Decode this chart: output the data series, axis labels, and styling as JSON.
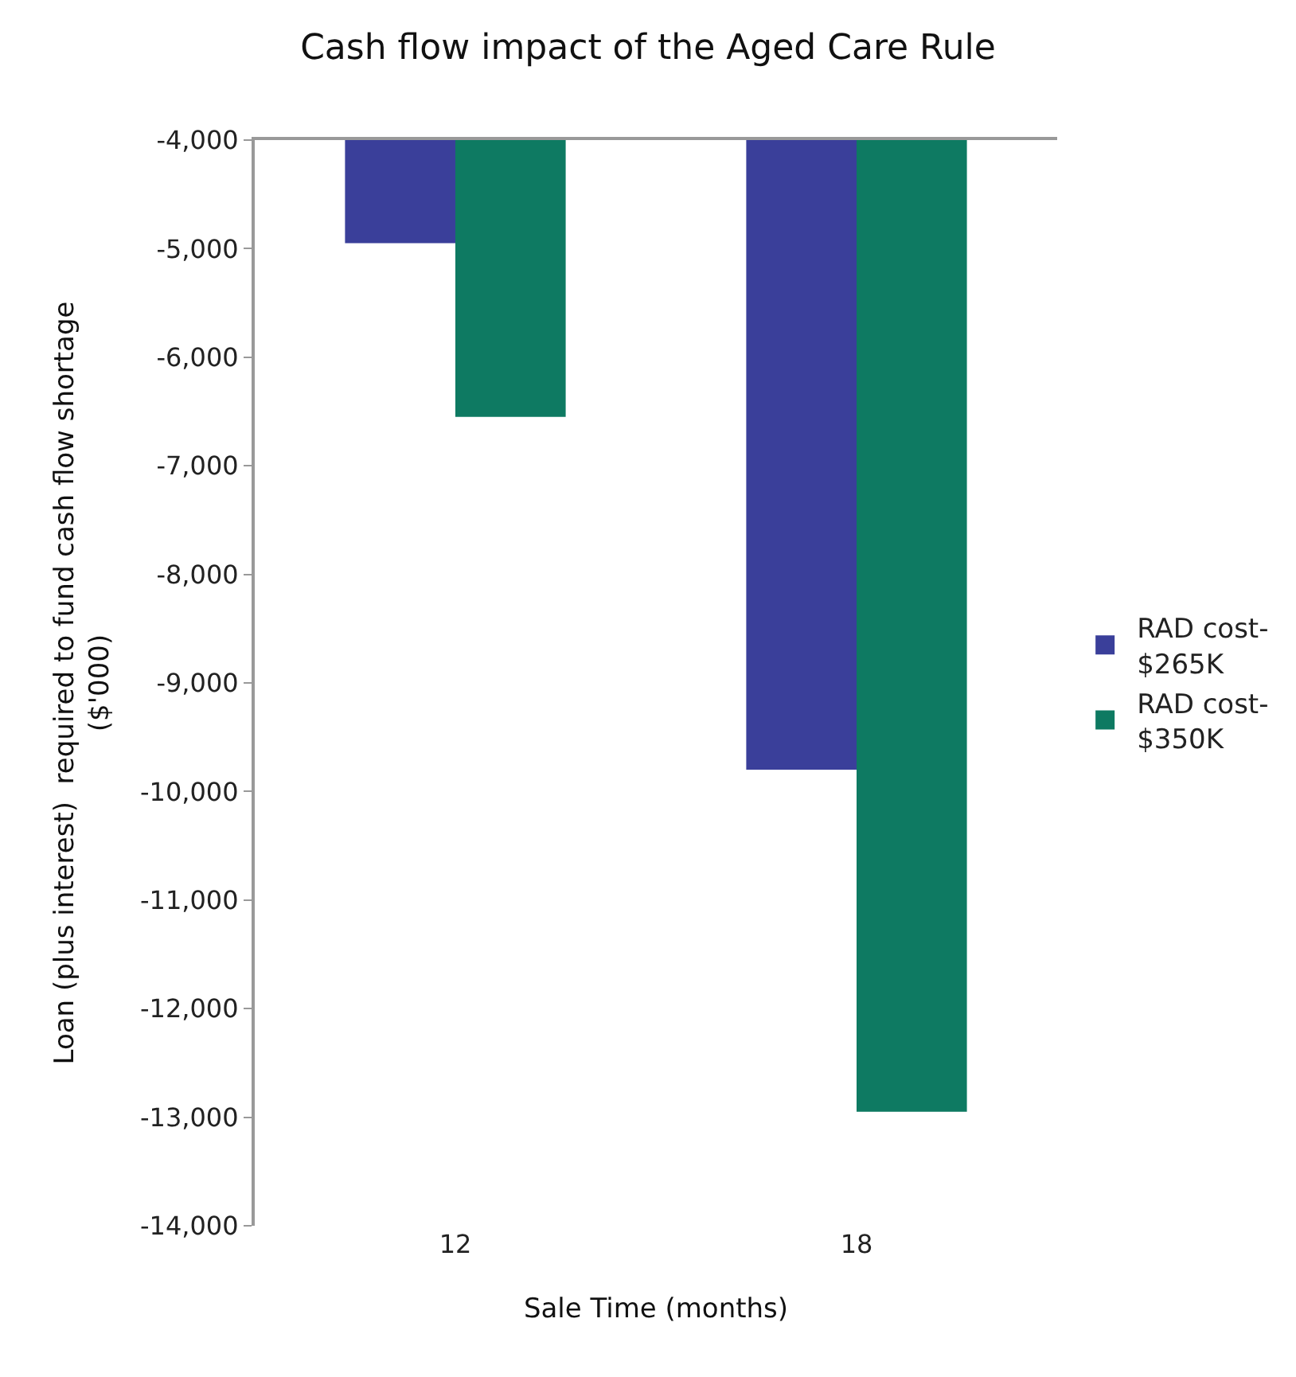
{
  "chart_data": {
    "type": "bar",
    "title": "Cash flow impact of the Aged Care Rule",
    "xlabel": "Sale Time (months)",
    "ylabel": "Loan (plus interest)  required to fund cash flow shortage\n($'000)",
    "categories": [
      "12",
      "18"
    ],
    "series": [
      {
        "name": "RAD cost- $265K",
        "color": "#3a3f9a",
        "values": [
          -4950,
          -9800
        ]
      },
      {
        "name": "RAD cost- $350K",
        "color": "#0e7a62",
        "values": [
          -6550,
          -12950
        ]
      }
    ],
    "ylim": [
      -14000,
      -4000
    ],
    "yticks": [
      {
        "value": -14000,
        "label": "-14,000"
      },
      {
        "value": -13000,
        "label": "-13,000"
      },
      {
        "value": -12000,
        "label": "-12,000"
      },
      {
        "value": -11000,
        "label": "-11,000"
      },
      {
        "value": -10000,
        "label": "-10,000"
      },
      {
        "value": -9000,
        "label": "-9,000"
      },
      {
        "value": -8000,
        "label": "-8,000"
      },
      {
        "value": -7000,
        "label": "-7,000"
      },
      {
        "value": -6000,
        "label": "-6,000"
      },
      {
        "value": -5000,
        "label": "-5,000"
      },
      {
        "value": -4000,
        "label": "-4,000"
      }
    ],
    "legend": "right"
  }
}
